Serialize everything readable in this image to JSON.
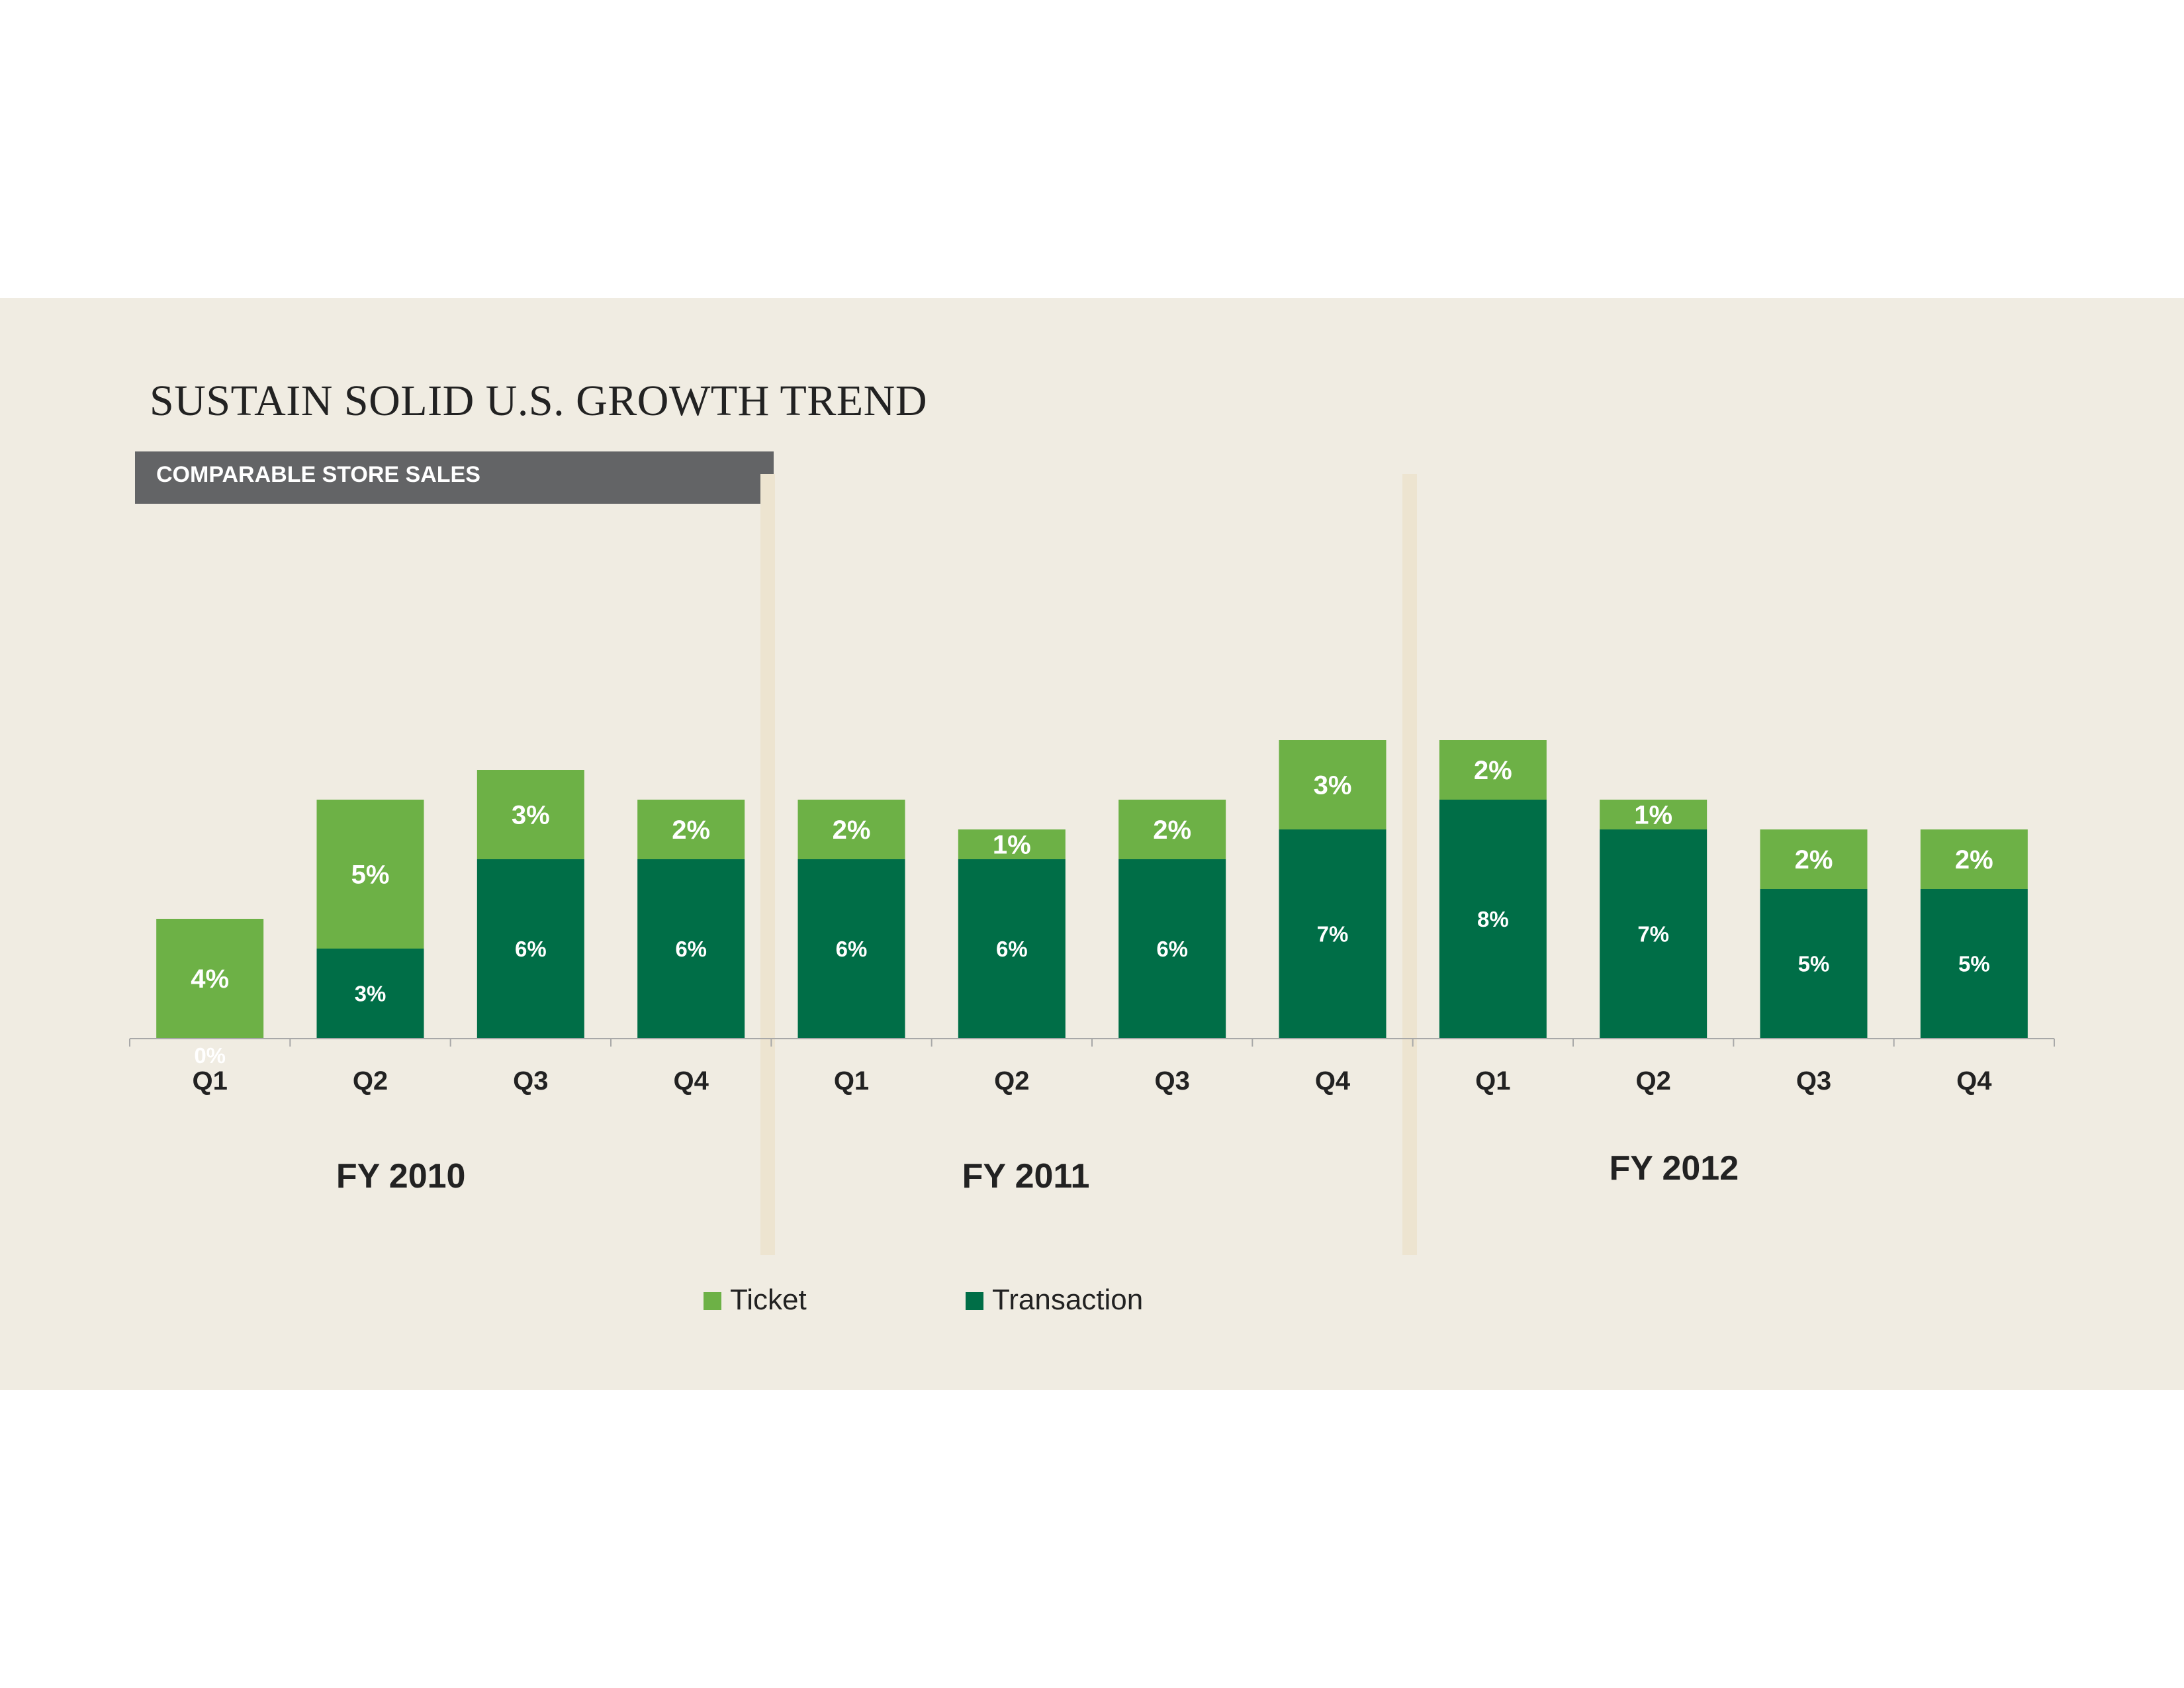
{
  "title": "SUSTAIN SOLID U.S. GROWTH TREND",
  "subtitle": "COMPARABLE STORE SALES",
  "chart_data": {
    "type": "bar",
    "stacked": true,
    "categories": [
      "Q1",
      "Q2",
      "Q3",
      "Q4",
      "Q1",
      "Q2",
      "Q3",
      "Q4",
      "Q1",
      "Q2",
      "Q3",
      "Q4"
    ],
    "groups": [
      {
        "label": "FY 2010",
        "start": 0,
        "end": 3
      },
      {
        "label": "FY 2011",
        "start": 4,
        "end": 7
      },
      {
        "label": "FY 2012",
        "start": 8,
        "end": 11
      }
    ],
    "series": [
      {
        "name": "Transaction",
        "color": "#006e47",
        "values": [
          0,
          3,
          6,
          6,
          6,
          6,
          6,
          7,
          8,
          7,
          5,
          5
        ],
        "labels": [
          "0%",
          "3%",
          "6%",
          "6%",
          "6%",
          "6%",
          "6%",
          "7%",
          "8%",
          "7%",
          "5%",
          "5%"
        ]
      },
      {
        "name": "Ticket",
        "color": "#6db146",
        "values": [
          4,
          5,
          3,
          2,
          2,
          1,
          2,
          3,
          2,
          1,
          2,
          2
        ],
        "labels": [
          "4%",
          "5%",
          "3%",
          "2%",
          "2%",
          "1%",
          "2%",
          "3%",
          "2%",
          "1%",
          "2%",
          "2%"
        ]
      }
    ],
    "legend": [
      "Ticket",
      "Transaction"
    ],
    "legend_position": "bottom",
    "ylim": [
      0,
      10
    ],
    "grid": false
  }
}
